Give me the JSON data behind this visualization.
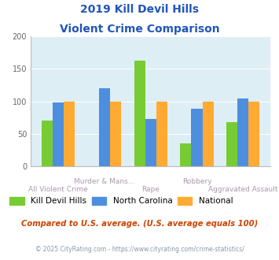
{
  "title_line1": "2019 Kill Devil Hills",
  "title_line2": "Violent Crime Comparison",
  "categories": [
    "All Violent Crime",
    "Murder & Mans...",
    "Rape",
    "Robbery",
    "Aggravated Assault"
  ],
  "kdh_values": [
    70,
    0,
    163,
    36,
    68
  ],
  "nc_values": [
    98,
    120,
    73,
    89,
    105
  ],
  "nat_values": [
    100,
    100,
    100,
    100,
    100
  ],
  "kdh_color": "#77cc33",
  "nc_color": "#4d8fde",
  "nat_color": "#ffaa33",
  "ylim": [
    0,
    200
  ],
  "yticks": [
    0,
    50,
    100,
    150,
    200
  ],
  "plot_bg_color": "#ddeef5",
  "fig_bg_color": "#ffffff",
  "title_color": "#2255bb",
  "footer_text": "Compared to U.S. average. (U.S. average equals 100)",
  "footer_color": "#cc4400",
  "credit_text": "© 2025 CityRating.com - https://www.cityrating.com/crime-statistics/",
  "credit_color": "#8899aa",
  "legend_labels": [
    "Kill Devil Hills",
    "North Carolina",
    "National"
  ],
  "xtick_color": "#aa99aa",
  "xlabel_top": [
    "",
    "Murder & Mans...",
    "",
    "Robbery",
    ""
  ],
  "xlabel_bot": [
    "All Violent Crime",
    "",
    "Rape",
    "",
    "Aggravated Assault"
  ]
}
